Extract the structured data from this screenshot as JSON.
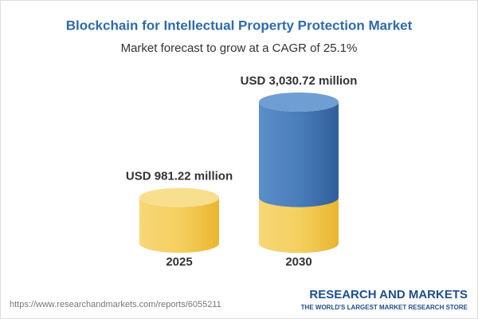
{
  "chart_data": {
    "type": "cylinder",
    "title": "Blockchain for Intellectual Property Protection Market",
    "subtitle": "Market forecast to grow at a CAGR of 25.1%",
    "categories": [
      "2025",
      "2030"
    ],
    "values": [
      981.22,
      3030.72
    ],
    "value_labels": [
      "USD 981.22 million",
      "USD 3,030.72 million"
    ],
    "colors": {
      "base": "#f2c94c",
      "growth": "#3f74b0"
    }
  },
  "footer": {
    "url": "https://www.researchandmarkets.com/reports/6055211",
    "brand": "RESEARCH AND MARKETS",
    "tagline": "THE WORLD'S LARGEST MARKET RESEARCH STORE"
  }
}
